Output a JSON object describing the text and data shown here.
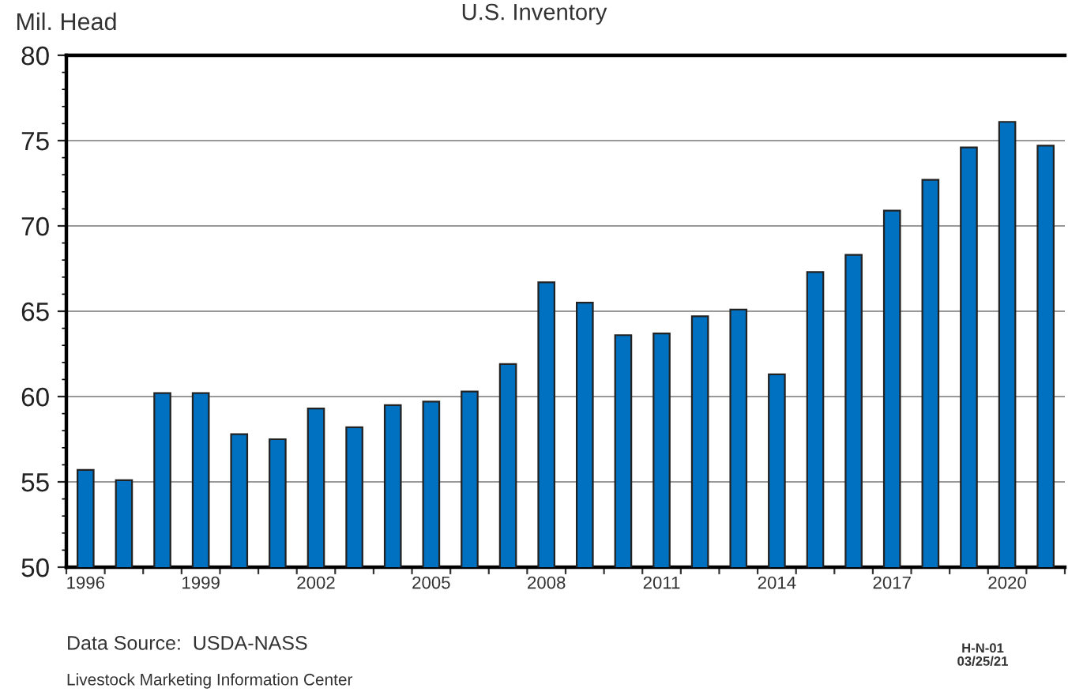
{
  "chart_data": {
    "type": "bar",
    "title": "U.S. Inventory",
    "ylabel": "Mil. Head",
    "categories": [
      "1996",
      null,
      null,
      "1999",
      null,
      null,
      "2002",
      null,
      null,
      "2005",
      null,
      null,
      "2008",
      null,
      null,
      "2011",
      null,
      null,
      "2014",
      null,
      null,
      "2017",
      null,
      null,
      "2020",
      null
    ],
    "series": [
      {
        "color": "#0070c0",
        "values": [
          55.7,
          55.1,
          60.2,
          60.2,
          57.8,
          57.5,
          59.3,
          58.2,
          59.5,
          59.7,
          60.3,
          61.9,
          66.7,
          65.5,
          63.6,
          63.7,
          64.7,
          65.1,
          61.3,
          67.3,
          68.3,
          70.9,
          72.7,
          74.6,
          76.1,
          74.7
        ]
      }
    ],
    "ylim": [
      50,
      80
    ],
    "yticks": [
      50,
      55,
      60,
      65,
      70,
      75,
      80
    ],
    "grid": "y",
    "legend": false,
    "annotations": [
      "Data Source:  USDA-NASS",
      "Livestock Marketing Information Center",
      "H-N-01\n03/25/21"
    ]
  }
}
